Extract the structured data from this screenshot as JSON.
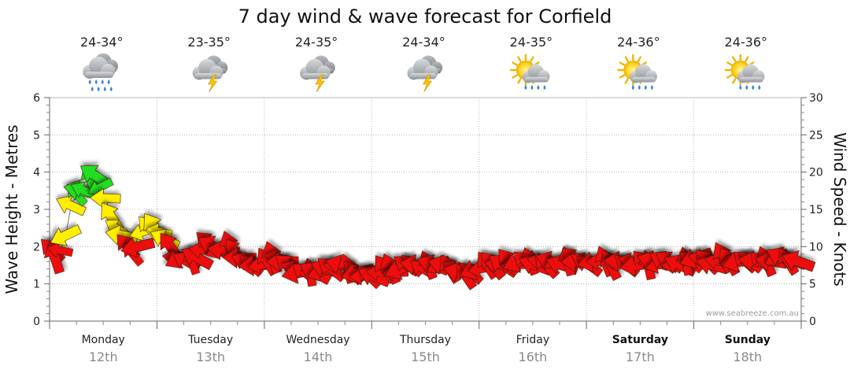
{
  "chart_data": {
    "type": "line",
    "title": "7 day wind & wave forecast for Corfield",
    "ylabel_left": "Wave Height - Metres",
    "ylabel_right": "Wind Speed - Knots",
    "ylim_left": [
      0,
      6
    ],
    "ylim_right": [
      0,
      30
    ],
    "yticks_left": [
      "0",
      "1",
      "2",
      "3",
      "4",
      "5",
      "6"
    ],
    "yticks_right": [
      "0",
      "5",
      "10",
      "15",
      "20",
      "25",
      "30"
    ],
    "grid": true,
    "watermark": "www.seabreeze.com.au",
    "days": [
      {
        "name": "Monday",
        "date": "12th",
        "temp": "24-34°",
        "weather": "rain-icon",
        "bold": false
      },
      {
        "name": "Tuesday",
        "date": "13th",
        "temp": "23-35°",
        "weather": "thunderstorm-icon",
        "bold": false
      },
      {
        "name": "Wednesday",
        "date": "14th",
        "temp": "24-35°",
        "weather": "thunderstorm-icon",
        "bold": false
      },
      {
        "name": "Thursday",
        "date": "15th",
        "temp": "24-34°",
        "weather": "thunderstorm-icon",
        "bold": false
      },
      {
        "name": "Friday",
        "date": "16th",
        "temp": "24-35°",
        "weather": "sun-showers-icon",
        "bold": false
      },
      {
        "name": "Saturday",
        "date": "17th",
        "temp": "24-36°",
        "weather": "sun-showers-icon",
        "bold": true
      },
      {
        "name": "Sunday",
        "date": "18th",
        "temp": "24-36°",
        "weather": "sun-showers-icon",
        "bold": true
      }
    ],
    "wind_series": {
      "name": "Wind Speed",
      "unit": "knots",
      "colors": {
        "light": "#22dd22",
        "moderate": "#ffee00",
        "strong": "#ee1111"
      },
      "points": [
        [
          0.05,
          9.5
        ],
        [
          0.1,
          8.5
        ],
        [
          0.2,
          9.5
        ],
        [
          0.3,
          11.5
        ],
        [
          0.4,
          15.5
        ],
        [
          0.5,
          17
        ],
        [
          0.58,
          17.5
        ],
        [
          0.65,
          17.5
        ],
        [
          0.75,
          19
        ],
        [
          0.85,
          19.5
        ],
        [
          0.95,
          18
        ],
        [
          1.05,
          16.5
        ],
        [
          1.15,
          14
        ],
        [
          1.25,
          12.5
        ],
        [
          1.35,
          11.5
        ],
        [
          1.45,
          10
        ],
        [
          1.55,
          9
        ],
        [
          1.65,
          10
        ],
        [
          1.75,
          12
        ],
        [
          1.85,
          12.5
        ],
        [
          1.95,
          12.5
        ],
        [
          2.05,
          12
        ],
        [
          2.15,
          11
        ],
        [
          2.25,
          10
        ],
        [
          2.35,
          8.5
        ],
        [
          2.45,
          8.5
        ],
        [
          2.55,
          8
        ],
        [
          2.65,
          8
        ],
        [
          2.75,
          8.5
        ],
        [
          2.85,
          9.5
        ],
        [
          2.95,
          10.5
        ],
        [
          3.05,
          10
        ],
        [
          3.15,
          9.5
        ],
        [
          3.25,
          9.5
        ],
        [
          3.35,
          10
        ],
        [
          3.45,
          9.5
        ],
        [
          3.55,
          8.5
        ],
        [
          3.65,
          8
        ],
        [
          3.75,
          7.5
        ],
        [
          3.85,
          7.5
        ],
        [
          3.95,
          7.5
        ],
        [
          4.05,
          8
        ],
        [
          4.15,
          8.5
        ],
        [
          4.25,
          8.5
        ],
        [
          4.35,
          8
        ],
        [
          4.45,
          7.5
        ],
        [
          4.55,
          7
        ],
        [
          4.65,
          6.5
        ],
        [
          4.75,
          6.5
        ],
        [
          4.85,
          6.5
        ],
        [
          4.95,
          6.5
        ],
        [
          5.05,
          6.5
        ],
        [
          5.15,
          7
        ],
        [
          5.25,
          7
        ],
        [
          5.35,
          7.5
        ],
        [
          5.45,
          7.5
        ],
        [
          5.55,
          7
        ],
        [
          5.65,
          6.5
        ],
        [
          5.75,
          6.5
        ],
        [
          5.85,
          6
        ],
        [
          5.95,
          6
        ],
        [
          6.05,
          6
        ],
        [
          6.15,
          6.5
        ],
        [
          6.25,
          7
        ],
        [
          6.35,
          7
        ],
        [
          6.45,
          6.5
        ],
        [
          6.55,
          7
        ],
        [
          6.65,
          7.5
        ],
        [
          6.75,
          7.5
        ],
        [
          6.85,
          7.5
        ],
        [
          6.95,
          7
        ],
        [
          7.05,
          7.5
        ],
        [
          7.15,
          7.5
        ],
        [
          7.25,
          7.5
        ],
        [
          7.35,
          7.5
        ],
        [
          7.45,
          7
        ],
        [
          7.55,
          7
        ],
        [
          7.65,
          6.5
        ],
        [
          7.75,
          6
        ],
        [
          7.85,
          6.5
        ],
        [
          7.95,
          7
        ],
        [
          8.05,
          7
        ],
        [
          8.15,
          7.5
        ],
        [
          8.25,
          7.5
        ],
        [
          8.35,
          7.5
        ],
        [
          8.45,
          7.5
        ],
        [
          8.55,
          8
        ],
        [
          8.65,
          7.5
        ],
        [
          8.75,
          8
        ],
        [
          8.85,
          8
        ],
        [
          8.95,
          8
        ],
        [
          9.05,
          7.5
        ],
        [
          9.15,
          8
        ],
        [
          9.25,
          7.5
        ],
        [
          9.35,
          8
        ],
        [
          9.45,
          8
        ],
        [
          9.55,
          7.5
        ],
        [
          9.65,
          8
        ],
        [
          9.75,
          8.5
        ],
        [
          9.85,
          8
        ],
        [
          9.95,
          8
        ],
        [
          10.05,
          7.5
        ],
        [
          10.15,
          8
        ],
        [
          10.25,
          8
        ],
        [
          10.35,
          8
        ],
        [
          10.45,
          7.5
        ],
        [
          10.55,
          8
        ],
        [
          10.65,
          8
        ],
        [
          10.75,
          7.5
        ],
        [
          10.85,
          8
        ],
        [
          10.95,
          7.5
        ],
        [
          11.05,
          8
        ],
        [
          11.15,
          7.5
        ],
        [
          11.25,
          8
        ],
        [
          11.35,
          7.5
        ],
        [
          11.45,
          8
        ],
        [
          11.55,
          8
        ],
        [
          11.65,
          7.5
        ],
        [
          11.75,
          7.5
        ],
        [
          11.85,
          8
        ],
        [
          11.95,
          8
        ],
        [
          12.05,
          8.5
        ],
        [
          12.15,
          8.5
        ],
        [
          12.25,
          8
        ],
        [
          12.35,
          7.5
        ],
        [
          12.45,
          8
        ],
        [
          12.55,
          8.5
        ],
        [
          12.65,
          8
        ],
        [
          12.75,
          8
        ],
        [
          12.85,
          8
        ],
        [
          12.95,
          8
        ],
        [
          13.05,
          8
        ],
        [
          13.15,
          8
        ],
        [
          13.25,
          8
        ],
        [
          13.35,
          8
        ],
        [
          13.45,
          8
        ],
        [
          13.55,
          8.5
        ],
        [
          13.65,
          8.5
        ],
        [
          13.75,
          8
        ],
        [
          13.85,
          8
        ],
        [
          13.95,
          8
        ]
      ]
    }
  }
}
